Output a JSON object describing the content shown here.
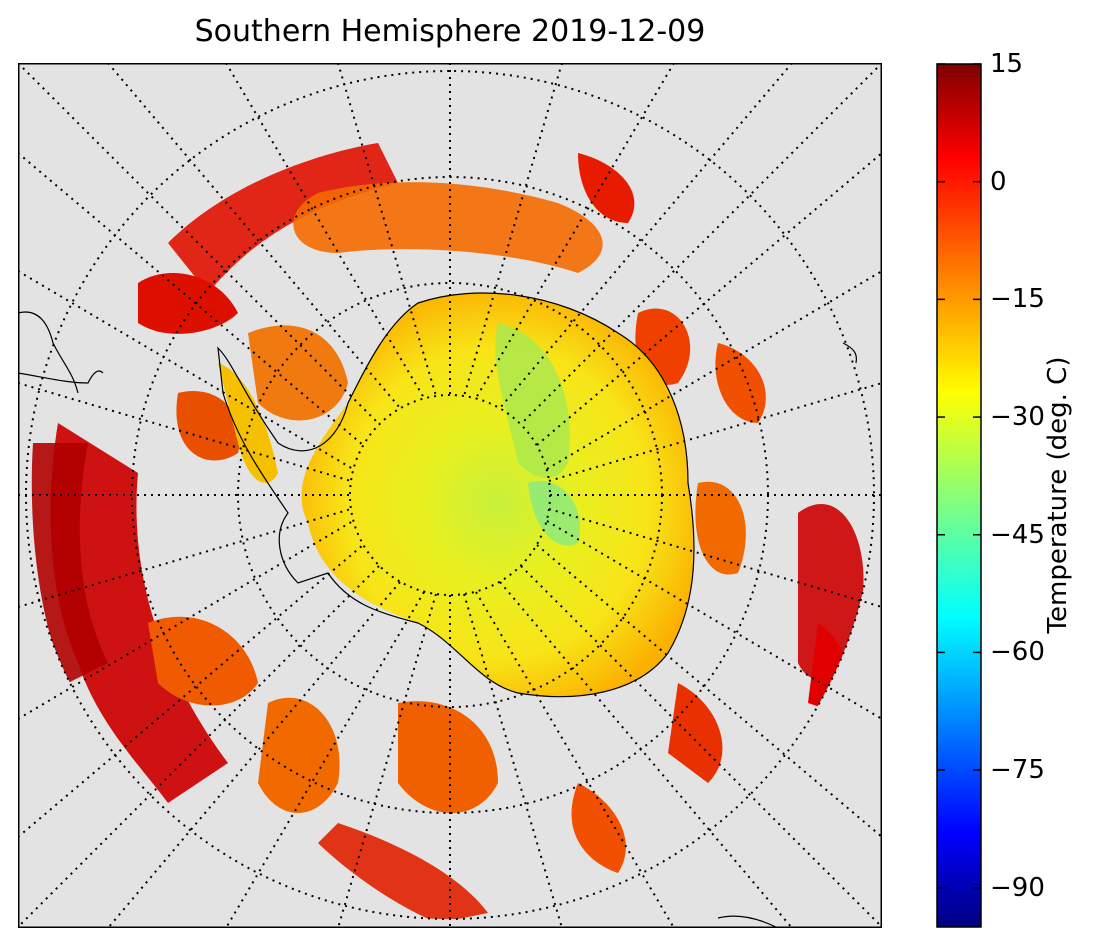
{
  "title": "Southern Hemisphere 2019-12-09",
  "colorbar": {
    "label": "Temperature (deg. C)",
    "ticks": [
      "15",
      "0",
      "−15",
      "−30",
      "−45",
      "−60",
      "−75",
      "−90"
    ],
    "tick_values": [
      15,
      0,
      -15,
      -30,
      -45,
      -60,
      -75,
      -90
    ],
    "range": [
      -95,
      15
    ],
    "colormap": "jet"
  },
  "map": {
    "projection": "south polar stereographic",
    "background_color": "#e3e3e3",
    "graticule": "dotted meridians and parallels",
    "coastlines": "black outline of Antarctica, South America tip, South Africa tip, Australia/NZ edges"
  }
}
